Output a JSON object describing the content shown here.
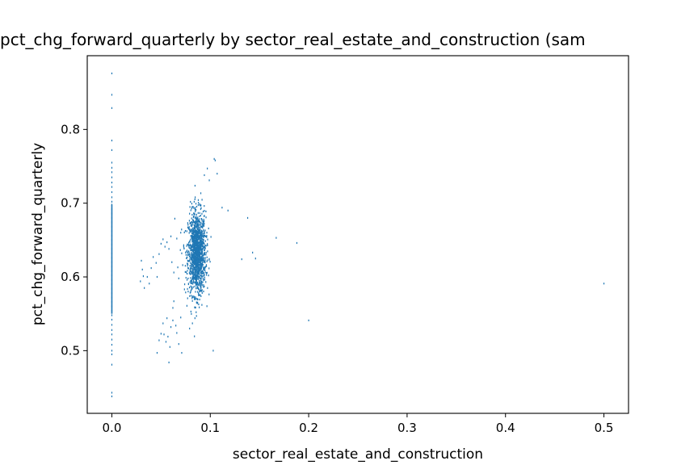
{
  "chart_data": {
    "type": "scatter",
    "title": "pct_chg_forward_quarterly by sector_real_estate_and_construction (sam",
    "xlabel": "sector_real_estate_and_construction",
    "ylabel": "pct_chg_forward_quarterly",
    "xlim": [
      -0.025,
      0.525
    ],
    "ylim": [
      0.415,
      0.9
    ],
    "xticks": [
      0.0,
      0.1,
      0.2,
      0.3,
      0.4,
      0.5
    ],
    "xtick_labels": [
      "0.0",
      "0.1",
      "0.2",
      "0.3",
      "0.4",
      "0.5"
    ],
    "yticks": [
      0.5,
      0.6,
      0.7,
      0.8
    ],
    "ytick_labels": [
      "0.5",
      "0.6",
      "0.7",
      "0.8"
    ],
    "grid": false,
    "color": "#1f77b4",
    "series": [
      {
        "points": [
          [
            0,
            0.876
          ],
          [
            0,
            0.847
          ],
          [
            0,
            0.829
          ],
          [
            0,
            0.785
          ],
          [
            0,
            0.772
          ],
          [
            0,
            0.755
          ],
          [
            0,
            0.748
          ],
          [
            0,
            0.742
          ],
          [
            0,
            0.735
          ],
          [
            0,
            0.728
          ],
          [
            0,
            0.722
          ],
          [
            0,
            0.715
          ],
          [
            0,
            0.708
          ],
          [
            0,
            0.702
          ],
          [
            0,
            0.698
          ],
          [
            0,
            0.692
          ],
          [
            0,
            0.686
          ],
          [
            0,
            0.68
          ],
          [
            0,
            0.674
          ],
          [
            0,
            0.668
          ],
          [
            0,
            0.662
          ],
          [
            0,
            0.656
          ],
          [
            0,
            0.65
          ],
          [
            0,
            0.644
          ],
          [
            0,
            0.638
          ],
          [
            0,
            0.632
          ],
          [
            0,
            0.626
          ],
          [
            0,
            0.62
          ],
          [
            0,
            0.614
          ],
          [
            0,
            0.608
          ],
          [
            0,
            0.602
          ],
          [
            0,
            0.596
          ],
          [
            0,
            0.59
          ],
          [
            0,
            0.584
          ],
          [
            0,
            0.578
          ],
          [
            0,
            0.572
          ],
          [
            0,
            0.566
          ],
          [
            0,
            0.56
          ],
          [
            0,
            0.554
          ],
          [
            0,
            0.548
          ],
          [
            0,
            0.542
          ],
          [
            0,
            0.535
          ],
          [
            0,
            0.528
          ],
          [
            0,
            0.522
          ],
          [
            0,
            0.515
          ],
          [
            0,
            0.508
          ],
          [
            0,
            0.5
          ],
          [
            0,
            0.495
          ],
          [
            0,
            0.481
          ],
          [
            0,
            0.443
          ],
          [
            0,
            0.438
          ],
          [
            0.104,
            0.76
          ],
          [
            0.105,
            0.758
          ],
          [
            0.099,
            0.731
          ],
          [
            0.107,
            0.74
          ],
          [
            0.112,
            0.694
          ],
          [
            0.118,
            0.69
          ],
          [
            0.097,
            0.747
          ],
          [
            0.094,
            0.738
          ],
          [
            0.138,
            0.68
          ],
          [
            0.143,
            0.633
          ],
          [
            0.146,
            0.625
          ],
          [
            0.132,
            0.624
          ],
          [
            0.167,
            0.653
          ],
          [
            0.188,
            0.646
          ],
          [
            0.2,
            0.541
          ],
          [
            0.5,
            0.591
          ],
          [
            0.103,
            0.5
          ],
          [
            0.086,
            0.547
          ],
          [
            0.079,
            0.53
          ],
          [
            0.03,
            0.622
          ],
          [
            0.031,
            0.61
          ],
          [
            0.032,
            0.601
          ],
          [
            0.029,
            0.594
          ],
          [
            0.033,
            0.585
          ],
          [
            0.036,
            0.6
          ],
          [
            0.038,
            0.591
          ],
          [
            0.04,
            0.612
          ],
          [
            0.042,
            0.627
          ],
          [
            0.045,
            0.619
          ],
          [
            0.046,
            0.6
          ],
          [
            0.048,
            0.631
          ],
          [
            0.05,
            0.645
          ],
          [
            0.052,
            0.651
          ],
          [
            0.054,
            0.641
          ],
          [
            0.056,
            0.647
          ],
          [
            0.058,
            0.638
          ],
          [
            0.06,
            0.655
          ],
          [
            0.061,
            0.62
          ],
          [
            0.063,
            0.606
          ],
          [
            0.064,
            0.679
          ],
          [
            0.066,
            0.652
          ],
          [
            0.067,
            0.613
          ],
          [
            0.068,
            0.598
          ],
          [
            0.07,
            0.66
          ],
          [
            0.071,
            0.632
          ],
          [
            0.072,
            0.616
          ],
          [
            0.073,
            0.641
          ],
          [
            0.074,
            0.59
          ],
          [
            0.075,
            0.579
          ],
          [
            0.076,
            0.642
          ],
          [
            0.077,
            0.571
          ],
          [
            0.052,
            0.537
          ],
          [
            0.053,
            0.522
          ],
          [
            0.055,
            0.512
          ],
          [
            0.057,
            0.519
          ],
          [
            0.058,
            0.484
          ],
          [
            0.06,
            0.532
          ],
          [
            0.062,
            0.541
          ],
          [
            0.062,
            0.558
          ],
          [
            0.063,
            0.567
          ],
          [
            0.065,
            0.534
          ],
          [
            0.066,
            0.524
          ],
          [
            0.068,
            0.509
          ],
          [
            0.07,
            0.545
          ],
          [
            0.071,
            0.497
          ],
          [
            0.048,
            0.514
          ],
          [
            0.046,
            0.497
          ],
          [
            0.05,
            0.523
          ],
          [
            0.056,
            0.544
          ],
          [
            0.059,
            0.505
          ]
        ]
      }
    ]
  }
}
